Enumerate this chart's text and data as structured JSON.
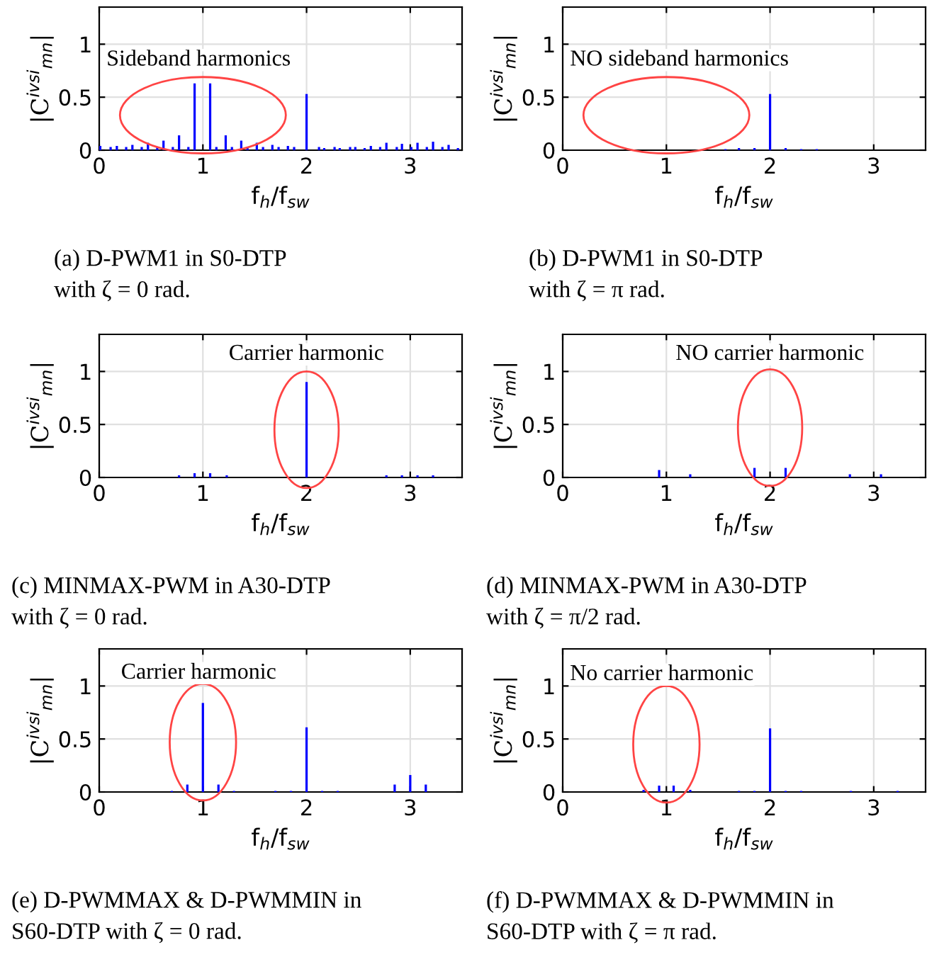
{
  "chart_data": [
    {
      "type": "bar",
      "x": [
        0.01,
        0.11,
        0.17,
        0.26,
        0.32,
        0.41,
        0.47,
        0.56,
        0.62,
        0.71,
        0.77,
        0.86,
        0.92,
        1.07,
        1.13,
        1.22,
        1.28,
        1.37,
        1.43,
        1.52,
        1.58,
        1.67,
        1.73,
        1.82,
        1.88,
        2.0,
        2.12,
        2.17,
        2.27,
        2.32,
        2.42,
        2.47,
        2.56,
        2.62,
        2.71,
        2.77,
        2.87,
        2.92,
        3.01,
        3.07,
        3.16,
        3.22,
        3.31,
        3.37,
        3.46
      ],
      "values": [
        0.04,
        0.03,
        0.04,
        0.03,
        0.05,
        0.03,
        0.07,
        0.03,
        0.09,
        0.03,
        0.14,
        0.03,
        0.63,
        0.63,
        0.03,
        0.14,
        0.03,
        0.09,
        0.03,
        0.07,
        0.03,
        0.05,
        0.03,
        0.04,
        0.03,
        0.53,
        0.03,
        0.02,
        0.03,
        0.02,
        0.03,
        0.03,
        0.02,
        0.04,
        0.03,
        0.07,
        0.03,
        0.06,
        0.03,
        0.07,
        0.03,
        0.08,
        0.03,
        0.05,
        0.02
      ],
      "color": "#0000ff",
      "xlim": [
        0,
        3.5
      ],
      "ylim": [
        0,
        1.35
      ],
      "xticks": [
        0,
        1,
        2,
        3
      ],
      "yticks": [
        0,
        0.5,
        1
      ],
      "grid": true,
      "xlabel": "f$_{h}$/f$_{sw}$",
      "ylabel": "|C$^{ivsi}$$_{mn}$|",
      "annotations": [
        "Sideband harmonics",
        "(a) D-PWM1 in S0-DTP\nwith ζ = 0 rad."
      ]
    },
    {
      "type": "bar",
      "x": [
        1.57,
        1.7,
        1.85,
        2.0,
        2.15,
        2.3,
        2.45
      ],
      "values": [
        0.01,
        0.02,
        0.02,
        0.53,
        0.02,
        0.01,
        0.01
      ],
      "color": "#0000ff",
      "xlim": [
        0,
        3.5
      ],
      "ylim": [
        0,
        1.35
      ],
      "xticks": [
        0,
        1,
        2,
        3
      ],
      "yticks": [
        0,
        0.5,
        1
      ],
      "grid": true,
      "xlabel": "f$_{h}$/f$_{sw}$",
      "ylabel": "|C$^{ivsi}$$_{mn}$|",
      "annotations": [
        "NO sideband harmonics",
        "(b) D-PWM1 in S0-DTP\nwith ζ = π rad."
      ]
    },
    {
      "type": "bar",
      "x": [
        0.77,
        0.92,
        1.07,
        1.23,
        2.0,
        2.77,
        2.92,
        3.07,
        3.22
      ],
      "values": [
        0.02,
        0.04,
        0.04,
        0.02,
        0.9,
        0.02,
        0.02,
        0.02,
        0.02
      ],
      "color": "#0000ff",
      "xlim": [
        0,
        3.5
      ],
      "ylim": [
        0,
        1.35
      ],
      "xticks": [
        0,
        1,
        2,
        3
      ],
      "yticks": [
        0,
        0.5,
        1
      ],
      "grid": true,
      "xlabel": "f$_{h}$/f$_{sw}$",
      "ylabel": "|C$^{ivsi}$$_{mn}$|",
      "annotations": [
        "Carrier harmonic",
        "(c) MINMAX-PWM in A30-DTP\nwith ζ = 0 rad."
      ]
    },
    {
      "type": "bar",
      "x": [
        0.93,
        1.23,
        1.85,
        2.15,
        2.77,
        3.07
      ],
      "values": [
        0.07,
        0.03,
        0.09,
        0.09,
        0.03,
        0.03
      ],
      "color": "#0000ff",
      "xlim": [
        0,
        3.5
      ],
      "ylim": [
        0,
        1.35
      ],
      "xticks": [
        0,
        1,
        2,
        3
      ],
      "yticks": [
        0,
        0.5,
        1
      ],
      "grid": true,
      "xlabel": "f$_{h}$/f$_{sw}$",
      "ylabel": "|C$^{ivsi}$$_{mn}$|",
      "annotations": [
        "NO carrier harmonic",
        "(d) MINMAX-PWM in A30-DTP\nwith ζ = π/2 rad."
      ]
    },
    {
      "type": "bar",
      "x": [
        0.7,
        0.85,
        1.0,
        1.15,
        1.3,
        1.7,
        1.85,
        2.0,
        2.15,
        2.3,
        2.85,
        3.0,
        3.15
      ],
      "values": [
        0.01,
        0.07,
        0.84,
        0.07,
        0.01,
        0.01,
        0.01,
        0.61,
        0.01,
        0.01,
        0.07,
        0.16,
        0.07
      ],
      "color": "#0000ff",
      "xlim": [
        0,
        3.5
      ],
      "ylim": [
        0,
        1.35
      ],
      "xticks": [
        0,
        1,
        2,
        3
      ],
      "yticks": [
        0,
        0.5,
        1
      ],
      "grid": true,
      "xlabel": "f$_{h}$/f$_{sw}$",
      "ylabel": "|C$^{ivsi}$$_{mn}$|",
      "annotations": [
        "Carrier harmonic",
        "(e) D-PWMMAX & D-PWMMIN in\nS60-DTP with ζ = 0 rad."
      ]
    },
    {
      "type": "bar",
      "x": [
        0.78,
        0.93,
        1.07,
        1.23,
        1.7,
        1.85,
        2.0,
        2.15,
        2.3,
        2.78,
        3.23
      ],
      "values": [
        0.02,
        0.06,
        0.06,
        0.02,
        0.01,
        0.01,
        0.6,
        0.01,
        0.01,
        0.01,
        0.01
      ],
      "color": "#0000ff",
      "xlim": [
        0,
        3.5
      ],
      "ylim": [
        0,
        1.35
      ],
      "xticks": [
        0,
        1,
        2,
        3
      ],
      "yticks": [
        0,
        0.5,
        1
      ],
      "grid": true,
      "xlabel": "f$_{h}$/f$_{sw}$",
      "ylabel": "|C$^{ivsi}$$_{mn}$|",
      "annotations": [
        "No carrier harmonic",
        "(f) D-PWMMAX & D-PWMMIN in\nS60-DTP with ζ = π rad."
      ]
    }
  ]
}
